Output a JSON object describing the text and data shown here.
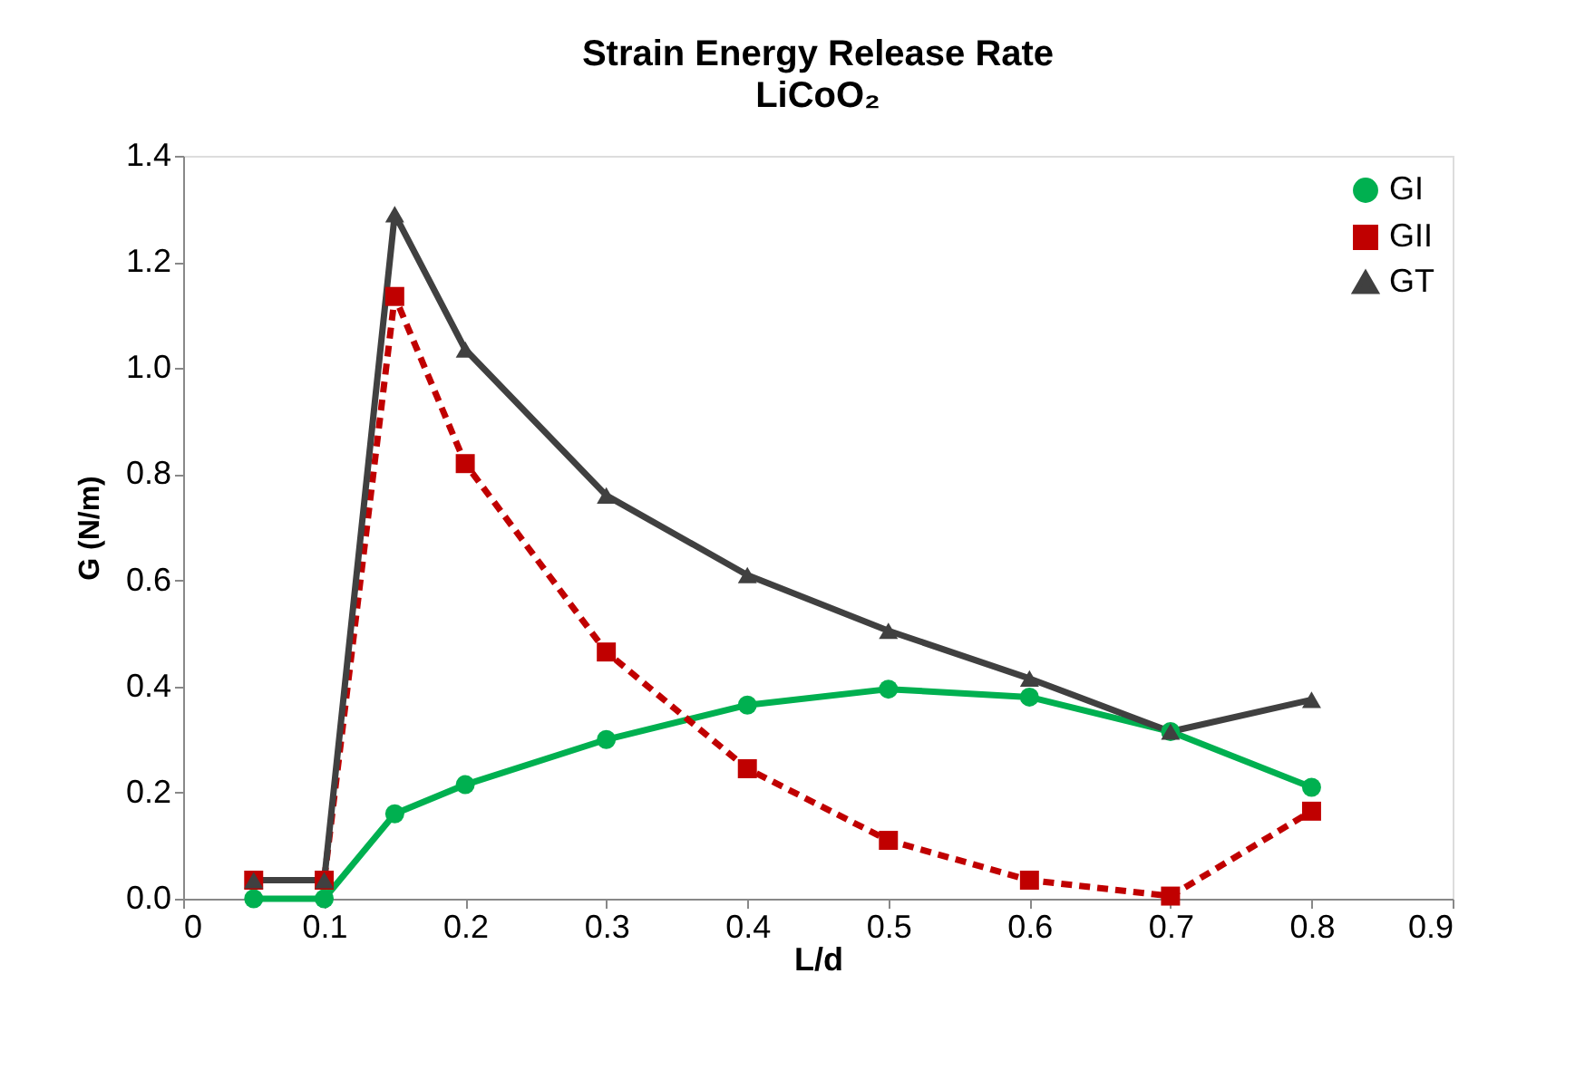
{
  "chart_data": {
    "type": "line",
    "title": "Strain Energy Release Rate",
    "subtitle": "LiCoO₂",
    "xlabel": "L/d",
    "ylabel": "G (N/m)",
    "x": [
      0.05,
      0.1,
      0.15,
      0.2,
      0.3,
      0.4,
      0.5,
      0.6,
      0.7,
      0.8
    ],
    "series": [
      {
        "name": "GI",
        "color": "#00b050",
        "marker": "circle",
        "line_style": "solid",
        "values": [
          0.0,
          0.0,
          0.16,
          0.215,
          0.3,
          0.365,
          0.395,
          0.38,
          0.315,
          0.21
        ]
      },
      {
        "name": "GII",
        "color": "#c00000",
        "marker": "square",
        "line_style": "dashed",
        "values": [
          0.035,
          0.035,
          1.135,
          0.82,
          0.465,
          0.245,
          0.11,
          0.035,
          0.005,
          0.165
        ]
      },
      {
        "name": "GT",
        "color": "#404040",
        "marker": "triangle",
        "line_style": "solid",
        "values": [
          0.035,
          0.035,
          1.29,
          1.035,
          0.76,
          0.61,
          0.505,
          0.415,
          0.315,
          0.375
        ]
      }
    ],
    "xlim": [
      0,
      0.9
    ],
    "xticks": [
      0,
      0.1,
      0.2,
      0.3,
      0.4,
      0.5,
      0.6,
      0.7,
      0.8,
      0.9
    ],
    "ylim": [
      0,
      1.4
    ],
    "yticks": [
      {
        "value": 0,
        "label": "0.0"
      },
      {
        "value": 0.2,
        "label": "0.2"
      },
      {
        "value": 0.4,
        "label": "0.4"
      },
      {
        "value": 0.6,
        "label": "0.6"
      },
      {
        "value": 0.8,
        "label": "0.8"
      },
      {
        "value": 1.0,
        "label": "1.0"
      },
      {
        "value": 1.2,
        "label": "1.2"
      },
      {
        "value": 1.4,
        "label": "1.4"
      }
    ],
    "grid": false,
    "legend": "top right"
  }
}
